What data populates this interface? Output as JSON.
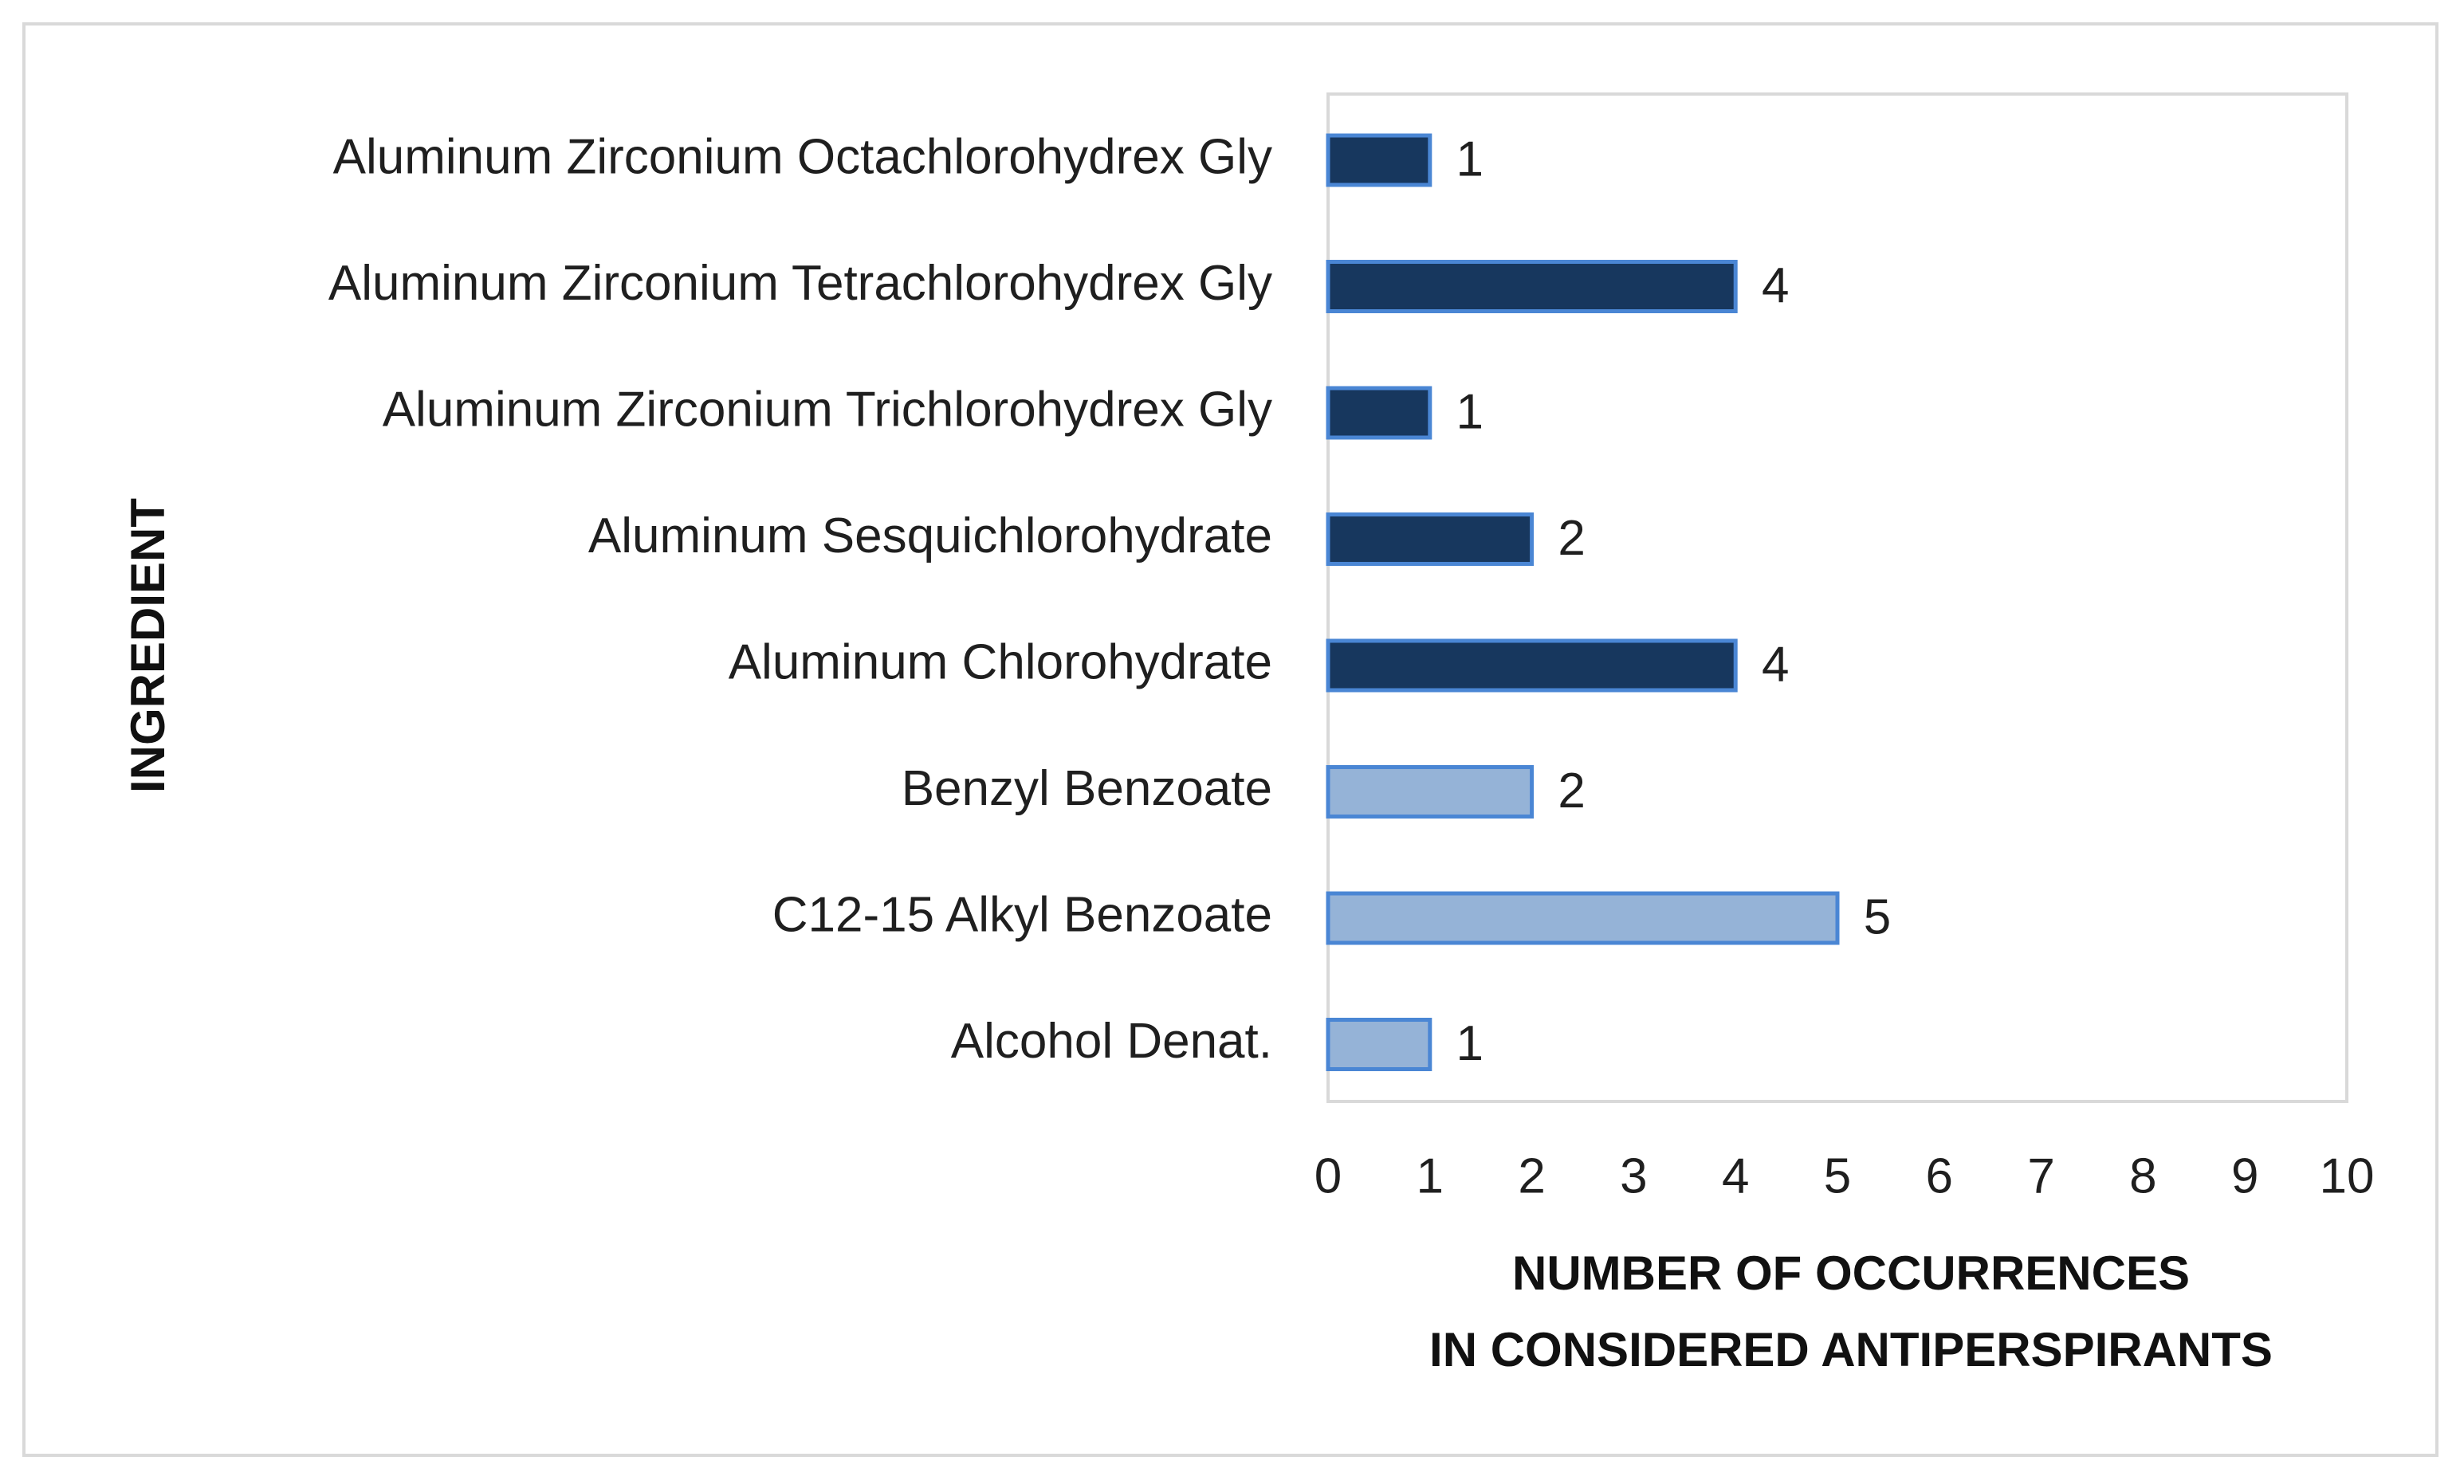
{
  "chart_data": {
    "type": "bar",
    "orientation": "horizontal",
    "categories": [
      "Aluminum Zirconium Octachlorohydrex Gly",
      "Aluminum Zirconium Tetrachlorohydrex Gly",
      "Aluminum Zirconium Trichlorohydrex Gly",
      "Aluminum Sesquichlorohydrate",
      "Aluminum Chlorohydrate",
      "Benzyl Benzoate",
      "C12-15 Alkyl Benzoate",
      "Alcohol Denat."
    ],
    "values": [
      1,
      4,
      1,
      2,
      4,
      2,
      5,
      1
    ],
    "bar_colors": [
      "#17375e",
      "#17375e",
      "#17375e",
      "#17375e",
      "#17375e",
      "#95b3d7",
      "#95b3d7",
      "#95b3d7"
    ],
    "bar_edge_color": "#4a86d4",
    "xlabel_lines": [
      "NUMBER OF OCCURRENCES",
      "IN CONSIDERED ANTIPERSPIRANTS"
    ],
    "ylabel": "INGREDIENT",
    "xlim": [
      0,
      10
    ],
    "xticks": [
      0,
      1,
      2,
      3,
      4,
      5,
      6,
      7,
      8,
      9,
      10
    ],
    "grid": false,
    "data_labels": true,
    "title": ""
  }
}
